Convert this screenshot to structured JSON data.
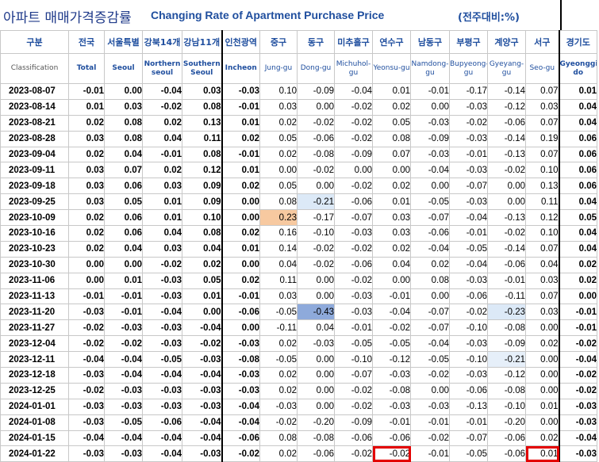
{
  "title": {
    "korean": "아파트 매매가격증감률",
    "english": "Changing Rate of Apartment Purchase Price",
    "unit": "(전주대비:%)"
  },
  "header": {
    "date_ko": "구분",
    "date_en": "Classification",
    "columns": [
      {
        "ko": "전국",
        "en": "Total"
      },
      {
        "ko": "서울특별",
        "en": "Seoul"
      },
      {
        "ko": "강북14개",
        "en": "Northern seoul"
      },
      {
        "ko": "강남11개",
        "en": "Southern Seoul"
      },
      {
        "ko": "인천광역",
        "en": "Incheon"
      },
      {
        "ko": "중구",
        "en": "Jung-gu"
      },
      {
        "ko": "동구",
        "en": "Dong-gu"
      },
      {
        "ko": "미추홀구",
        "en": "Michuhol-gu"
      },
      {
        "ko": "연수구",
        "en": "Yeonsu-gu"
      },
      {
        "ko": "남동구",
        "en": "Namdong-gu"
      },
      {
        "ko": "부평구",
        "en": "Bupyeong-gu"
      },
      {
        "ko": "계양구",
        "en": "Gyeyang-gu"
      },
      {
        "ko": "서구",
        "en": "Seo-gu"
      },
      {
        "ko": "경기도",
        "en": "Gyeonggi-do"
      }
    ]
  },
  "chart_data": {
    "type": "table",
    "title": "Changing Rate of Apartment Purchase Price",
    "unit": "(전주대비:%)",
    "columns": [
      "Total",
      "Seoul",
      "Northern seoul",
      "Southern Seoul",
      "Incheon",
      "Jung-gu",
      "Dong-gu",
      "Michuhol-gu",
      "Yeonsu-gu",
      "Namdong-gu",
      "Bupyeong-gu",
      "Gyeyang-gu",
      "Seo-gu",
      "Gyeonggi-do"
    ],
    "rows": [
      {
        "date": "2023-08-07",
        "values": [
          "-0.01",
          "0.00",
          "-0.04",
          "0.03",
          "-0.03",
          "0.10",
          "-0.09",
          "-0.04",
          "0.01",
          "-0.01",
          "-0.17",
          "-0.14",
          "0.07",
          "0.01"
        ]
      },
      {
        "date": "2023-08-14",
        "values": [
          "0.01",
          "0.03",
          "-0.02",
          "0.08",
          "-0.01",
          "0.03",
          "0.00",
          "-0.02",
          "0.02",
          "0.00",
          "-0.03",
          "-0.12",
          "0.03",
          "0.04"
        ]
      },
      {
        "date": "2023-08-21",
        "values": [
          "0.02",
          "0.08",
          "0.02",
          "0.13",
          "0.01",
          "0.02",
          "-0.02",
          "-0.02",
          "0.05",
          "-0.03",
          "-0.02",
          "-0.06",
          "0.07",
          "0.04"
        ]
      },
      {
        "date": "2023-08-28",
        "values": [
          "0.03",
          "0.08",
          "0.04",
          "0.11",
          "0.02",
          "0.05",
          "-0.06",
          "-0.02",
          "0.08",
          "-0.09",
          "-0.03",
          "-0.14",
          "0.19",
          "0.06"
        ]
      },
      {
        "date": "2023-09-04",
        "values": [
          "0.02",
          "0.04",
          "-0.01",
          "0.08",
          "-0.01",
          "0.02",
          "-0.08",
          "-0.09",
          "0.07",
          "-0.03",
          "-0.01",
          "-0.13",
          "0.07",
          "0.06"
        ]
      },
      {
        "date": "2023-09-11",
        "values": [
          "0.03",
          "0.07",
          "0.02",
          "0.12",
          "0.01",
          "0.00",
          "-0.02",
          "0.00",
          "0.00",
          "-0.04",
          "-0.03",
          "-0.02",
          "0.10",
          "0.06"
        ]
      },
      {
        "date": "2023-09-18",
        "values": [
          "0.03",
          "0.06",
          "0.03",
          "0.09",
          "0.02",
          "0.05",
          "0.00",
          "-0.02",
          "0.02",
          "0.00",
          "-0.07",
          "0.00",
          "0.13",
          "0.06"
        ]
      },
      {
        "date": "2023-09-25",
        "values": [
          "0.03",
          "0.05",
          "0.01",
          "0.09",
          "0.00",
          "0.08",
          "-0.21",
          "-0.06",
          "0.01",
          "-0.05",
          "-0.03",
          "0.00",
          "0.11",
          "0.04"
        ]
      },
      {
        "date": "2023-10-09",
        "values": [
          "0.02",
          "0.06",
          "0.01",
          "0.10",
          "0.00",
          "0.23",
          "-0.17",
          "-0.07",
          "0.03",
          "-0.07",
          "-0.04",
          "-0.13",
          "0.12",
          "0.05"
        ]
      },
      {
        "date": "2023-10-16",
        "values": [
          "0.02",
          "0.06",
          "0.04",
          "0.08",
          "0.02",
          "0.16",
          "-0.10",
          "-0.03",
          "0.03",
          "-0.06",
          "-0.01",
          "-0.02",
          "0.10",
          "0.04"
        ]
      },
      {
        "date": "2023-10-23",
        "values": [
          "0.02",
          "0.04",
          "0.03",
          "0.04",
          "0.01",
          "0.14",
          "-0.02",
          "-0.02",
          "0.02",
          "-0.04",
          "-0.05",
          "-0.14",
          "0.07",
          "0.04"
        ]
      },
      {
        "date": "2023-10-30",
        "values": [
          "0.00",
          "0.00",
          "-0.02",
          "0.02",
          "0.00",
          "0.04",
          "-0.02",
          "-0.06",
          "0.04",
          "0.02",
          "-0.04",
          "-0.06",
          "0.04",
          "0.02"
        ]
      },
      {
        "date": "2023-11-06",
        "values": [
          "0.00",
          "0.01",
          "-0.03",
          "0.05",
          "0.02",
          "0.11",
          "0.00",
          "-0.02",
          "0.00",
          "0.08",
          "-0.03",
          "-0.01",
          "0.03",
          "0.02"
        ]
      },
      {
        "date": "2023-11-13",
        "values": [
          "-0.01",
          "-0.01",
          "-0.03",
          "0.01",
          "-0.01",
          "0.03",
          "0.00",
          "-0.03",
          "-0.01",
          "0.00",
          "-0.06",
          "-0.11",
          "0.07",
          "0.00"
        ]
      },
      {
        "date": "2023-11-20",
        "values": [
          "-0.03",
          "-0.01",
          "-0.04",
          "0.00",
          "-0.06",
          "-0.05",
          "-0.43",
          "-0.03",
          "-0.04",
          "-0.07",
          "-0.02",
          "-0.23",
          "0.03",
          "-0.01"
        ]
      },
      {
        "date": "2023-11-27",
        "values": [
          "-0.02",
          "-0.03",
          "-0.03",
          "-0.04",
          "0.00",
          "-0.11",
          "0.04",
          "-0.01",
          "-0.02",
          "-0.07",
          "-0.10",
          "-0.08",
          "0.00",
          "-0.01"
        ]
      },
      {
        "date": "2023-12-04",
        "values": [
          "-0.02",
          "-0.02",
          "-0.03",
          "-0.02",
          "-0.03",
          "0.02",
          "-0.03",
          "-0.05",
          "-0.05",
          "-0.04",
          "-0.03",
          "-0.09",
          "0.02",
          "-0.02"
        ]
      },
      {
        "date": "2023-12-11",
        "values": [
          "-0.04",
          "-0.04",
          "-0.05",
          "-0.03",
          "-0.08",
          "-0.05",
          "0.00",
          "-0.10",
          "-0.12",
          "-0.05",
          "-0.10",
          "-0.21",
          "0.00",
          "-0.04"
        ]
      },
      {
        "date": "2023-12-18",
        "values": [
          "-0.03",
          "-0.04",
          "-0.04",
          "-0.04",
          "-0.03",
          "0.02",
          "0.00",
          "-0.07",
          "-0.03",
          "-0.02",
          "-0.03",
          "-0.12",
          "0.00",
          "-0.02"
        ]
      },
      {
        "date": "2023-12-25",
        "values": [
          "-0.02",
          "-0.03",
          "-0.03",
          "-0.03",
          "-0.03",
          "0.02",
          "0.00",
          "-0.02",
          "-0.08",
          "0.00",
          "-0.06",
          "-0.08",
          "0.00",
          "-0.02"
        ]
      },
      {
        "date": "2024-01-01",
        "values": [
          "-0.03",
          "-0.03",
          "-0.03",
          "-0.03",
          "-0.04",
          "-0.03",
          "0.00",
          "-0.02",
          "-0.03",
          "-0.03",
          "-0.13",
          "-0.10",
          "0.01",
          "-0.03"
        ]
      },
      {
        "date": "2024-01-08",
        "values": [
          "-0.03",
          "-0.05",
          "-0.06",
          "-0.04",
          "-0.04",
          "-0.02",
          "-0.20",
          "-0.09",
          "-0.01",
          "-0.01",
          "-0.01",
          "-0.20",
          "0.00",
          "-0.03"
        ]
      },
      {
        "date": "2024-01-15",
        "values": [
          "-0.04",
          "-0.04",
          "-0.04",
          "-0.04",
          "-0.06",
          "0.08",
          "-0.08",
          "-0.06",
          "-0.06",
          "-0.02",
          "-0.07",
          "-0.06",
          "0.02",
          "-0.04"
        ]
      },
      {
        "date": "2024-01-22",
        "values": [
          "-0.03",
          "-0.03",
          "-0.04",
          "-0.03",
          "-0.02",
          "0.02",
          "-0.06",
          "-0.02",
          "-0.02",
          "-0.01",
          "-0.05",
          "-0.06",
          "0.01",
          "-0.03"
        ]
      }
    ],
    "highlights": [
      {
        "date": "2023-09-25",
        "column": "Dong-gu",
        "color": "#dce9f7"
      },
      {
        "date": "2023-10-09",
        "column": "Jung-gu",
        "color": "#f7c9a0"
      },
      {
        "date": "2023-11-20",
        "column": "Dong-gu",
        "color": "#8eaadb"
      },
      {
        "date": "2023-11-20",
        "column": "Gyeyang-gu",
        "color": "#dce9f7"
      },
      {
        "date": "2023-12-11",
        "column": "Gyeyang-gu",
        "color": "#e6eff9"
      },
      {
        "date": "2024-01-22",
        "column": "Yeonsu-gu",
        "outline": "#e30000"
      },
      {
        "date": "2024-01-22",
        "column": "Seo-gu",
        "outline": "#e30000"
      }
    ]
  }
}
